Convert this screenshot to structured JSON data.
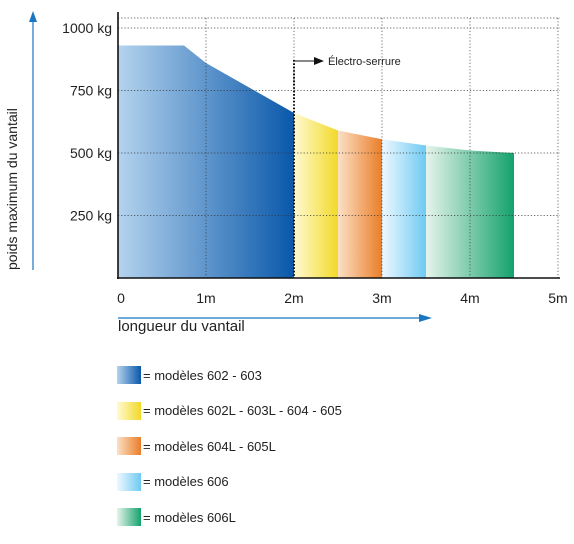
{
  "chart_data": {
    "type": "area",
    "ylabel": "poids maximum du vantail",
    "xlabel": "longueur du vantail",
    "x_ticks": [
      "0",
      "1m",
      "2m",
      "3m",
      "4m",
      "5m"
    ],
    "y_ticks": [
      "250 kg",
      "500 kg",
      "750 kg",
      "1000 kg"
    ],
    "xlim": [
      0,
      5
    ],
    "ylim": [
      0,
      1000
    ],
    "grid": true,
    "annotation": {
      "text": "Électro-serrure",
      "x": 2
    },
    "curve": [
      [
        0,
        930
      ],
      [
        0.75,
        930
      ],
      [
        1,
        860
      ],
      [
        1.5,
        760
      ],
      [
        2,
        660
      ],
      [
        2.5,
        590
      ],
      [
        3,
        555
      ],
      [
        3.5,
        530
      ],
      [
        4,
        510
      ],
      [
        4.5,
        500
      ]
    ],
    "series": [
      {
        "name": "modèles 602 - 603",
        "x_range": [
          0,
          2
        ],
        "colors": [
          "#b4d3ee",
          "#0a58aa"
        ]
      },
      {
        "name": "modèles 602L - 603L - 604 - 605",
        "x_range": [
          2,
          2.5
        ],
        "colors": [
          "#fffad2",
          "#f2d928"
        ]
      },
      {
        "name": "modèles 604L - 605L",
        "x_range": [
          2.5,
          3
        ],
        "colors": [
          "#fbe0c6",
          "#ea7e28"
        ]
      },
      {
        "name": "modèles 606",
        "x_range": [
          3,
          3.5
        ],
        "colors": [
          "#eef8ff",
          "#6fcaf2"
        ]
      },
      {
        "name": "modèles 606L",
        "x_range": [
          3.5,
          4.5
        ],
        "colors": [
          "#e6f4ec",
          "#14a26c"
        ]
      }
    ],
    "legend_prefix": "= ",
    "axis_color": "#1b76c0"
  }
}
